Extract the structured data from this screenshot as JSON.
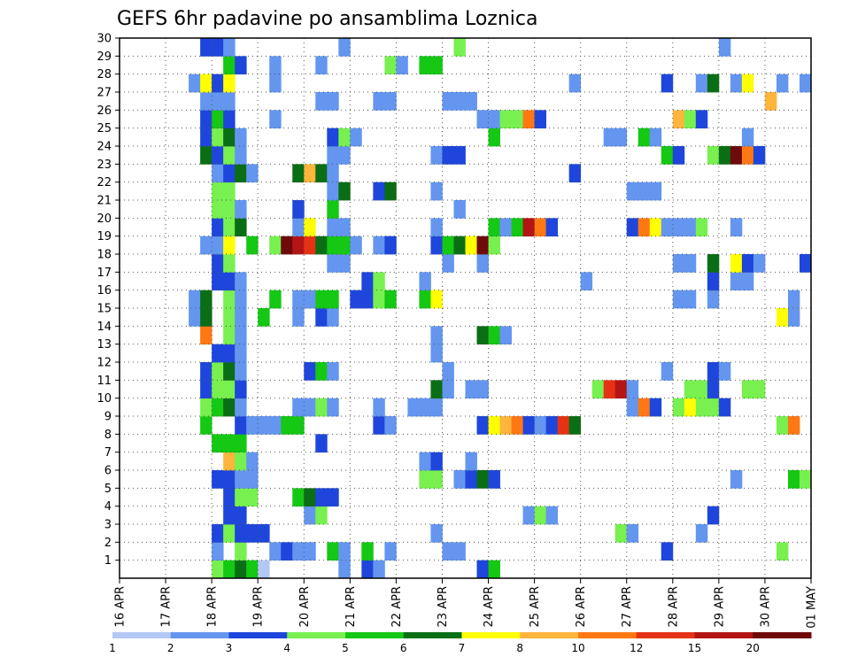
{
  "chart_data": {
    "type": "heatmap",
    "title": "GEFS 6hr padavine po ansamblima Loznica",
    "xlabel": "",
    "ylabel": "",
    "x_ticks": [
      "16 APR",
      "17 APR",
      "18 APR",
      "19 APR",
      "20 APR",
      "21 APR",
      "22 APR",
      "23 APR",
      "24 APR",
      "25 APR",
      "26 APR",
      "27 APR",
      "28 APR",
      "29 APR",
      "30 APR",
      "01 MAY"
    ],
    "y_ticks": [
      "1",
      "2",
      "3",
      "4",
      "5",
      "6",
      "7",
      "8",
      "9",
      "10",
      "11",
      "12",
      "13",
      "14",
      "15",
      "16",
      "17",
      "18",
      "19",
      "20",
      "21",
      "22",
      "23",
      "24",
      "25",
      "26",
      "27",
      "28",
      "29",
      "30"
    ],
    "xlim": [
      0,
      15
    ],
    "ylim": [
      0,
      30
    ],
    "grid": true,
    "legend": "bottom",
    "colorbar": {
      "labels": [
        "1",
        "2",
        "3",
        "4",
        "5",
        "6",
        "7",
        "8",
        "10",
        "12",
        "15",
        "20"
      ],
      "colors": [
        "#b4c8f5",
        "#6496f0",
        "#1e46dc",
        "#78f050",
        "#14c814",
        "#0a6e14",
        "#ffff00",
        "#ffb43c",
        "#ff7814",
        "#e63214",
        "#b41414",
        "#6e0a0a"
      ]
    },
    "cell_width_days": 0.25,
    "cells": [
      [
        1,
        2.0,
        3
      ],
      [
        1,
        2.25,
        4
      ],
      [
        1,
        2.5,
        5
      ],
      [
        1,
        2.75,
        4
      ],
      [
        1,
        3.0,
        0
      ],
      [
        1,
        4.75,
        1
      ],
      [
        1,
        5.25,
        2
      ],
      [
        1,
        5.5,
        1
      ],
      [
        1,
        7.75,
        2
      ],
      [
        1,
        8.0,
        4
      ],
      [
        2,
        2.0,
        1
      ],
      [
        2,
        2.5,
        3
      ],
      [
        2,
        3.25,
        1
      ],
      [
        2,
        3.5,
        2
      ],
      [
        2,
        3.75,
        1
      ],
      [
        2,
        4.0,
        1
      ],
      [
        2,
        4.5,
        4
      ],
      [
        2,
        4.75,
        1
      ],
      [
        2,
        5.25,
        4
      ],
      [
        2,
        5.75,
        1
      ],
      [
        2,
        7.0,
        1
      ],
      [
        2,
        7.25,
        1
      ],
      [
        2,
        11.75,
        2
      ],
      [
        2,
        14.25,
        3
      ],
      [
        3,
        2.0,
        2
      ],
      [
        3,
        2.25,
        3
      ],
      [
        3,
        2.5,
        2
      ],
      [
        3,
        2.75,
        2
      ],
      [
        3,
        3.0,
        2
      ],
      [
        3,
        6.75,
        1
      ],
      [
        3,
        10.75,
        3
      ],
      [
        3,
        11.0,
        1
      ],
      [
        3,
        12.5,
        1
      ],
      [
        4,
        2.25,
        2
      ],
      [
        4,
        2.5,
        2
      ],
      [
        4,
        4.0,
        1
      ],
      [
        4,
        4.25,
        3
      ],
      [
        4,
        8.75,
        1
      ],
      [
        4,
        9.0,
        3
      ],
      [
        4,
        9.25,
        1
      ],
      [
        4,
        12.75,
        2
      ],
      [
        5,
        2.25,
        2
      ],
      [
        5,
        2.5,
        3
      ],
      [
        5,
        2.75,
        3
      ],
      [
        5,
        3.75,
        4
      ],
      [
        5,
        4.0,
        5
      ],
      [
        5,
        4.25,
        2
      ],
      [
        5,
        4.5,
        2
      ],
      [
        6,
        2.0,
        2
      ],
      [
        6,
        2.25,
        2
      ],
      [
        6,
        2.5,
        1
      ],
      [
        6,
        2.75,
        1
      ],
      [
        6,
        6.5,
        3
      ],
      [
        6,
        6.75,
        3
      ],
      [
        6,
        7.25,
        1
      ],
      [
        6,
        7.5,
        2
      ],
      [
        6,
        7.75,
        5
      ],
      [
        6,
        8.0,
        2
      ],
      [
        6,
        13.25,
        1
      ],
      [
        6,
        14.5,
        4
      ],
      [
        6,
        14.75,
        3
      ],
      [
        7,
        2.25,
        7
      ],
      [
        7,
        2.5,
        3
      ],
      [
        7,
        2.75,
        1
      ],
      [
        7,
        6.5,
        1
      ],
      [
        7,
        6.75,
        2
      ],
      [
        7,
        7.5,
        1
      ],
      [
        8,
        2.0,
        4
      ],
      [
        8,
        2.25,
        4
      ],
      [
        8,
        2.5,
        4
      ],
      [
        8,
        4.25,
        2
      ],
      [
        9,
        1.75,
        4
      ],
      [
        9,
        2.5,
        2
      ],
      [
        9,
        2.75,
        1
      ],
      [
        9,
        3.0,
        1
      ],
      [
        9,
        3.25,
        1
      ],
      [
        9,
        3.5,
        4
      ],
      [
        9,
        3.75,
        4
      ],
      [
        9,
        5.5,
        2
      ],
      [
        9,
        5.75,
        1
      ],
      [
        9,
        7.75,
        2
      ],
      [
        9,
        8.0,
        6
      ],
      [
        9,
        8.25,
        7
      ],
      [
        9,
        8.5,
        8
      ],
      [
        9,
        8.75,
        2
      ],
      [
        9,
        9.0,
        1
      ],
      [
        9,
        9.25,
        2
      ],
      [
        9,
        9.5,
        9
      ],
      [
        9,
        9.75,
        5
      ],
      [
        9,
        14.25,
        3
      ],
      [
        9,
        14.5,
        8
      ],
      [
        10,
        1.75,
        3
      ],
      [
        10,
        2.0,
        4
      ],
      [
        10,
        2.25,
        5
      ],
      [
        10,
        2.5,
        1
      ],
      [
        10,
        3.75,
        1
      ],
      [
        10,
        4.0,
        1
      ],
      [
        10,
        4.25,
        3
      ],
      [
        10,
        4.5,
        1
      ],
      [
        10,
        5.5,
        1
      ],
      [
        10,
        6.25,
        1
      ],
      [
        10,
        6.5,
        1
      ],
      [
        10,
        6.75,
        1
      ],
      [
        10,
        11.0,
        1
      ],
      [
        10,
        11.25,
        8
      ],
      [
        10,
        11.5,
        2
      ],
      [
        10,
        12.0,
        3
      ],
      [
        10,
        12.25,
        6
      ],
      [
        10,
        12.5,
        3
      ],
      [
        10,
        12.75,
        3
      ],
      [
        10,
        13.0,
        2
      ],
      [
        11,
        1.75,
        2
      ],
      [
        11,
        2.0,
        3
      ],
      [
        11,
        2.25,
        3
      ],
      [
        11,
        2.5,
        2
      ],
      [
        11,
        6.75,
        5
      ],
      [
        11,
        7.0,
        1
      ],
      [
        11,
        7.5,
        1
      ],
      [
        11,
        7.75,
        1
      ],
      [
        11,
        10.25,
        3
      ],
      [
        11,
        10.5,
        9
      ],
      [
        11,
        10.75,
        10
      ],
      [
        11,
        11.0,
        1
      ],
      [
        11,
        12.25,
        3
      ],
      [
        11,
        12.5,
        3
      ],
      [
        11,
        12.75,
        2
      ],
      [
        11,
        13.5,
        3
      ],
      [
        11,
        13.75,
        3
      ],
      [
        12,
        1.75,
        2
      ],
      [
        12,
        2.0,
        3
      ],
      [
        12,
        2.25,
        5
      ],
      [
        12,
        2.5,
        1
      ],
      [
        12,
        4.0,
        2
      ],
      [
        12,
        4.25,
        4
      ],
      [
        12,
        4.5,
        1
      ],
      [
        12,
        7.0,
        1
      ],
      [
        12,
        11.75,
        1
      ],
      [
        12,
        12.75,
        2
      ],
      [
        12,
        13.0,
        1
      ],
      [
        13,
        2.0,
        2
      ],
      [
        13,
        2.25,
        2
      ],
      [
        13,
        2.5,
        1
      ],
      [
        13,
        6.75,
        1
      ],
      [
        14,
        1.75,
        8
      ],
      [
        14,
        2.25,
        3
      ],
      [
        14,
        2.5,
        1
      ],
      [
        14,
        6.75,
        1
      ],
      [
        14,
        7.75,
        5
      ],
      [
        14,
        8.0,
        4
      ],
      [
        14,
        8.25,
        1
      ],
      [
        15,
        1.5,
        1
      ],
      [
        15,
        1.75,
        5
      ],
      [
        15,
        2.25,
        3
      ],
      [
        15,
        2.5,
        1
      ],
      [
        15,
        3.0,
        4
      ],
      [
        15,
        3.75,
        1
      ],
      [
        15,
        4.25,
        2
      ],
      [
        15,
        4.5,
        1
      ],
      [
        15,
        14.25,
        6
      ],
      [
        15,
        14.5,
        1
      ],
      [
        16,
        1.5,
        1
      ],
      [
        16,
        1.75,
        5
      ],
      [
        16,
        2.25,
        3
      ],
      [
        16,
        2.5,
        1
      ],
      [
        16,
        3.25,
        4
      ],
      [
        16,
        3.75,
        1
      ],
      [
        16,
        4.0,
        1
      ],
      [
        16,
        4.25,
        4
      ],
      [
        16,
        4.5,
        4
      ],
      [
        16,
        5.0,
        2
      ],
      [
        16,
        5.25,
        2
      ],
      [
        16,
        5.5,
        3
      ],
      [
        16,
        5.75,
        4
      ],
      [
        16,
        6.5,
        4
      ],
      [
        16,
        6.75,
        6
      ],
      [
        16,
        12.0,
        1
      ],
      [
        16,
        12.25,
        1
      ],
      [
        16,
        12.75,
        1
      ],
      [
        16,
        14.5,
        1
      ],
      [
        17,
        2.0,
        2
      ],
      [
        17,
        2.25,
        2
      ],
      [
        17,
        2.5,
        1
      ],
      [
        17,
        5.25,
        2
      ],
      [
        17,
        5.5,
        3
      ],
      [
        17,
        6.5,
        1
      ],
      [
        17,
        10.0,
        1
      ],
      [
        17,
        12.75,
        2
      ],
      [
        17,
        13.25,
        1
      ],
      [
        17,
        13.5,
        1
      ],
      [
        18,
        2.0,
        2
      ],
      [
        18,
        2.25,
        3
      ],
      [
        18,
        4.5,
        1
      ],
      [
        18,
        4.75,
        1
      ],
      [
        18,
        7.0,
        1
      ],
      [
        18,
        7.75,
        1
      ],
      [
        18,
        12.0,
        1
      ],
      [
        18,
        12.25,
        1
      ],
      [
        18,
        12.75,
        5
      ],
      [
        18,
        13.25,
        6
      ],
      [
        18,
        13.5,
        2
      ],
      [
        18,
        13.75,
        1
      ],
      [
        18,
        14.75,
        2
      ],
      [
        19,
        1.75,
        1
      ],
      [
        19,
        2.0,
        1
      ],
      [
        19,
        2.25,
        6
      ],
      [
        19,
        2.75,
        4
      ],
      [
        19,
        3.25,
        3
      ],
      [
        19,
        3.5,
        11
      ],
      [
        19,
        3.75,
        10
      ],
      [
        19,
        4.0,
        9
      ],
      [
        19,
        4.25,
        5
      ],
      [
        19,
        4.5,
        4
      ],
      [
        19,
        4.75,
        4
      ],
      [
        19,
        5.0,
        1
      ],
      [
        19,
        5.5,
        1
      ],
      [
        19,
        5.75,
        2
      ],
      [
        19,
        6.75,
        2
      ],
      [
        19,
        7.0,
        4
      ],
      [
        19,
        7.25,
        5
      ],
      [
        19,
        7.5,
        6
      ],
      [
        19,
        7.75,
        11
      ],
      [
        19,
        8.0,
        3
      ],
      [
        20,
        2.0,
        2
      ],
      [
        20,
        2.25,
        3
      ],
      [
        20,
        2.5,
        5
      ],
      [
        20,
        3.75,
        1
      ],
      [
        20,
        4.0,
        6
      ],
      [
        20,
        4.5,
        1
      ],
      [
        20,
        4.75,
        1
      ],
      [
        20,
        6.75,
        1
      ],
      [
        20,
        8.0,
        4
      ],
      [
        20,
        8.25,
        1
      ],
      [
        20,
        8.5,
        4
      ],
      [
        20,
        8.75,
        10
      ],
      [
        20,
        9.0,
        8
      ],
      [
        20,
        9.25,
        2
      ],
      [
        20,
        11.0,
        2
      ],
      [
        20,
        11.25,
        8
      ],
      [
        20,
        11.5,
        6
      ],
      [
        20,
        11.75,
        1
      ],
      [
        20,
        12.0,
        1
      ],
      [
        20,
        12.25,
        1
      ],
      [
        20,
        12.5,
        3
      ],
      [
        20,
        13.25,
        1
      ],
      [
        21,
        2.0,
        3
      ],
      [
        21,
        2.25,
        3
      ],
      [
        21,
        2.5,
        1
      ],
      [
        21,
        3.75,
        2
      ],
      [
        21,
        4.5,
        4
      ],
      [
        21,
        7.25,
        1
      ],
      [
        22,
        2.0,
        3
      ],
      [
        22,
        2.25,
        3
      ],
      [
        22,
        4.5,
        1
      ],
      [
        22,
        4.75,
        5
      ],
      [
        22,
        5.5,
        2
      ],
      [
        22,
        5.75,
        5
      ],
      [
        22,
        6.75,
        1
      ],
      [
        22,
        11.0,
        1
      ],
      [
        22,
        11.25,
        1
      ],
      [
        22,
        11.5,
        1
      ],
      [
        23,
        2.0,
        1
      ],
      [
        23,
        2.25,
        2
      ],
      [
        23,
        2.5,
        5
      ],
      [
        23,
        2.75,
        1
      ],
      [
        23,
        3.75,
        5
      ],
      [
        23,
        4.0,
        7
      ],
      [
        23,
        4.25,
        5
      ],
      [
        23,
        4.5,
        1
      ],
      [
        23,
        9.75,
        2
      ],
      [
        24,
        1.75,
        5
      ],
      [
        24,
        2.0,
        2
      ],
      [
        24,
        2.25,
        3
      ],
      [
        24,
        2.5,
        1
      ],
      [
        24,
        4.5,
        1
      ],
      [
        24,
        4.75,
        1
      ],
      [
        24,
        6.75,
        1
      ],
      [
        24,
        7.0,
        2
      ],
      [
        24,
        7.25,
        2
      ],
      [
        24,
        11.75,
        4
      ],
      [
        24,
        12.0,
        2
      ],
      [
        24,
        12.75,
        3
      ],
      [
        24,
        13.0,
        5
      ],
      [
        24,
        13.25,
        11
      ],
      [
        24,
        13.5,
        8
      ],
      [
        24,
        13.75,
        2
      ],
      [
        25,
        1.75,
        2
      ],
      [
        25,
        2.0,
        3
      ],
      [
        25,
        2.25,
        5
      ],
      [
        25,
        2.5,
        1
      ],
      [
        25,
        4.5,
        2
      ],
      [
        25,
        4.75,
        3
      ],
      [
        25,
        5.0,
        1
      ],
      [
        25,
        8.0,
        4
      ],
      [
        25,
        10.5,
        1
      ],
      [
        25,
        10.75,
        1
      ],
      [
        25,
        11.25,
        4
      ],
      [
        25,
        11.5,
        1
      ],
      [
        25,
        13.5,
        1
      ],
      [
        26,
        1.75,
        2
      ],
      [
        26,
        2.0,
        4
      ],
      [
        26,
        2.25,
        2
      ],
      [
        26,
        3.25,
        1
      ],
      [
        26,
        7.75,
        1
      ],
      [
        26,
        8.0,
        1
      ],
      [
        26,
        8.25,
        3
      ],
      [
        26,
        8.5,
        3
      ],
      [
        26,
        8.75,
        8
      ],
      [
        26,
        9.0,
        2
      ],
      [
        26,
        12.0,
        7
      ],
      [
        26,
        12.25,
        3
      ],
      [
        26,
        12.5,
        2
      ],
      [
        27,
        1.75,
        1
      ],
      [
        27,
        2.0,
        1
      ],
      [
        27,
        2.25,
        1
      ],
      [
        27,
        4.25,
        1
      ],
      [
        27,
        4.5,
        1
      ],
      [
        27,
        5.5,
        1
      ],
      [
        27,
        5.75,
        1
      ],
      [
        27,
        7.0,
        1
      ],
      [
        27,
        7.25,
        1
      ],
      [
        27,
        7.5,
        1
      ],
      [
        27,
        14.0,
        7
      ],
      [
        28,
        1.5,
        1
      ],
      [
        28,
        1.75,
        6
      ],
      [
        28,
        2.0,
        2
      ],
      [
        28,
        2.25,
        6
      ],
      [
        28,
        3.25,
        1
      ],
      [
        28,
        9.75,
        1
      ],
      [
        28,
        11.75,
        2
      ],
      [
        28,
        12.5,
        1
      ],
      [
        28,
        12.75,
        5
      ],
      [
        28,
        13.25,
        1
      ],
      [
        28,
        13.5,
        6
      ],
      [
        28,
        14.25,
        1
      ],
      [
        28,
        14.75,
        1
      ],
      [
        29,
        2.25,
        4
      ],
      [
        29,
        2.5,
        2
      ],
      [
        29,
        3.25,
        1
      ],
      [
        29,
        4.25,
        1
      ],
      [
        29,
        5.75,
        3
      ],
      [
        29,
        6.0,
        1
      ],
      [
        29,
        6.5,
        4
      ],
      [
        29,
        6.75,
        4
      ],
      [
        30,
        1.75,
        2
      ],
      [
        30,
        2.0,
        2
      ],
      [
        30,
        2.25,
        1
      ],
      [
        30,
        4.75,
        1
      ],
      [
        30,
        7.25,
        3
      ],
      [
        30,
        13.0,
        1
      ]
    ]
  }
}
